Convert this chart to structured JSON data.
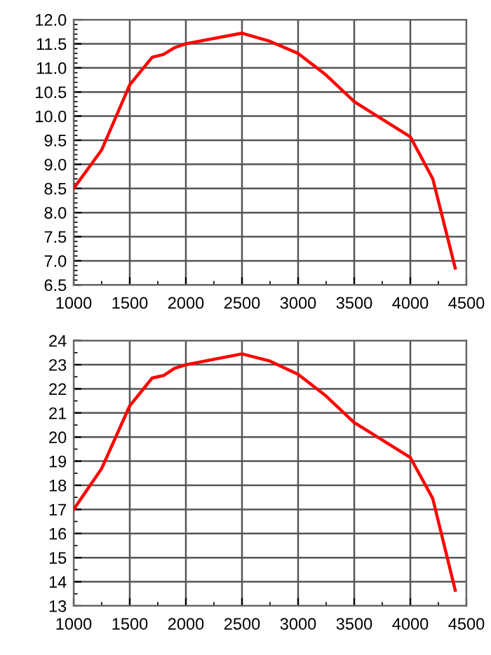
{
  "chart_data": [
    {
      "type": "line",
      "x": [
        1000,
        1250,
        1500,
        1700,
        1800,
        1900,
        2000,
        2500,
        2750,
        3000,
        3250,
        3500,
        4000,
        4200,
        4400
      ],
      "series": [
        {
          "color": "#ff0000",
          "values": [
            8.5,
            9.3,
            10.65,
            11.22,
            11.28,
            11.42,
            11.5,
            11.72,
            11.55,
            11.3,
            10.85,
            10.3,
            9.57,
            8.7,
            6.85
          ]
        }
      ],
      "xlim": [
        1000,
        4500
      ],
      "xticks": [
        1000,
        1500,
        2000,
        2500,
        3000,
        3500,
        4000,
        4500
      ],
      "ylim": [
        6.5,
        12.0
      ],
      "yticks": [
        {
          "value": 6.5,
          "label": "6.5"
        },
        {
          "value": 7.0,
          "label": "7.0"
        },
        {
          "value": 7.5,
          "label": "7.5"
        },
        {
          "value": 8.0,
          "label": "8.0"
        },
        {
          "value": 8.5,
          "label": "8.5"
        },
        {
          "value": 9.0,
          "label": "9.0"
        },
        {
          "value": 9.5,
          "label": "9.5"
        },
        {
          "value": 10.0,
          "label": "10.0"
        },
        {
          "value": 10.5,
          "label": "10.5"
        },
        {
          "value": 11.0,
          "label": "11.0"
        },
        {
          "value": 11.5,
          "label": "11.5"
        },
        {
          "value": 12.0,
          "label": "12.0"
        }
      ],
      "grid": true,
      "marker": "none",
      "line_style": "solid"
    },
    {
      "type": "line",
      "x": [
        1000,
        1250,
        1500,
        1700,
        1800,
        1900,
        2000,
        2500,
        2750,
        3000,
        3250,
        3500,
        4000,
        4200,
        4400
      ],
      "series": [
        {
          "color": "#ff0000",
          "values": [
            17.0,
            18.7,
            21.3,
            22.45,
            22.55,
            22.85,
            23.0,
            23.45,
            23.15,
            22.6,
            21.7,
            20.6,
            19.15,
            17.45,
            13.65
          ]
        }
      ],
      "xlim": [
        1000,
        4500
      ],
      "xticks": [
        1000,
        1500,
        2000,
        2500,
        3000,
        3500,
        4000,
        4500
      ],
      "ylim": [
        13,
        24
      ],
      "yticks": [
        13,
        14,
        15,
        16,
        17,
        18,
        19,
        20,
        21,
        22,
        23,
        24
      ],
      "grid": true,
      "marker": "none",
      "line_style": "solid"
    }
  ]
}
